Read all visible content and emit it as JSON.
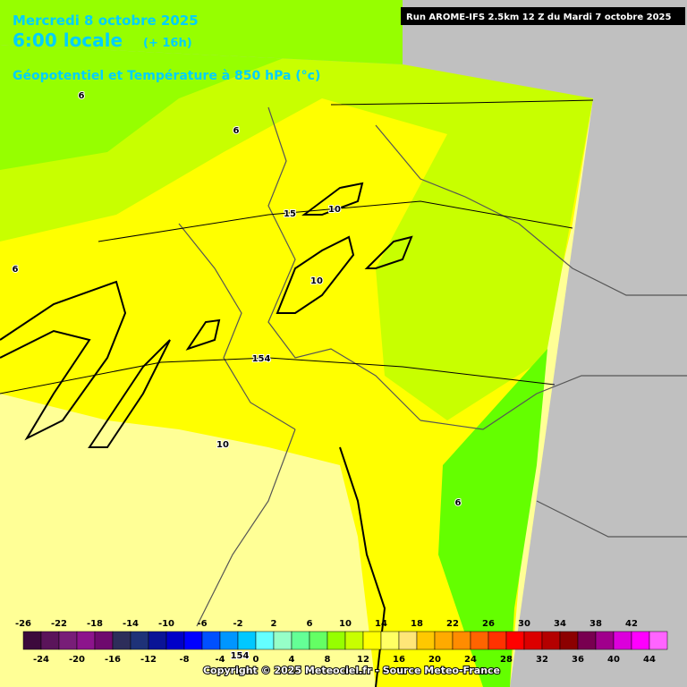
{
  "header": {
    "date": "Mercredi 8 octobre 2025",
    "time": "6:00 locale",
    "lead": "(+ 16h)",
    "field": "Géopotentiel et Température à 850 hPa (°c)",
    "run": "Run AROME-IFS 2.5km 12 Z du Mardi 7 octobre 2025"
  },
  "map": {
    "contour_labels": [
      "6",
      "6",
      "6",
      "15",
      "10",
      "10",
      "154",
      "10",
      "6",
      "154"
    ]
  },
  "scale": {
    "levels": [
      -26,
      -24,
      -22,
      -20,
      -18,
      -16,
      -14,
      -12,
      -10,
      -8,
      -6,
      -4,
      -2,
      0,
      2,
      4,
      6,
      8,
      10,
      12,
      14,
      16,
      18,
      20,
      22,
      24,
      26,
      28,
      30,
      32,
      34,
      36,
      38,
      40,
      42,
      44
    ],
    "colors": [
      "#3c0a3c",
      "#5a145a",
      "#781e78",
      "#8c148c",
      "#6e0a6e",
      "#2d2d5a",
      "#1e3278",
      "#0a1496",
      "#0000c8",
      "#0000ff",
      "#0050ff",
      "#0096ff",
      "#00c8ff",
      "#64ffff",
      "#96ffc8",
      "#64ff96",
      "#64ff64",
      "#96ff00",
      "#c8ff00",
      "#ffff00",
      "#ffff64",
      "#ffe678",
      "#ffc800",
      "#ffaa00",
      "#ff8c00",
      "#ff6400",
      "#ff3200",
      "#ff0000",
      "#dc0000",
      "#b40000",
      "#8c0000",
      "#780050",
      "#a0008c",
      "#dc00dc",
      "#ff00ff",
      "#ff64ff"
    ]
  },
  "footer": {
    "copyright": "Copyright © 2025 Meteociel.fr - Source Meteo-France"
  }
}
